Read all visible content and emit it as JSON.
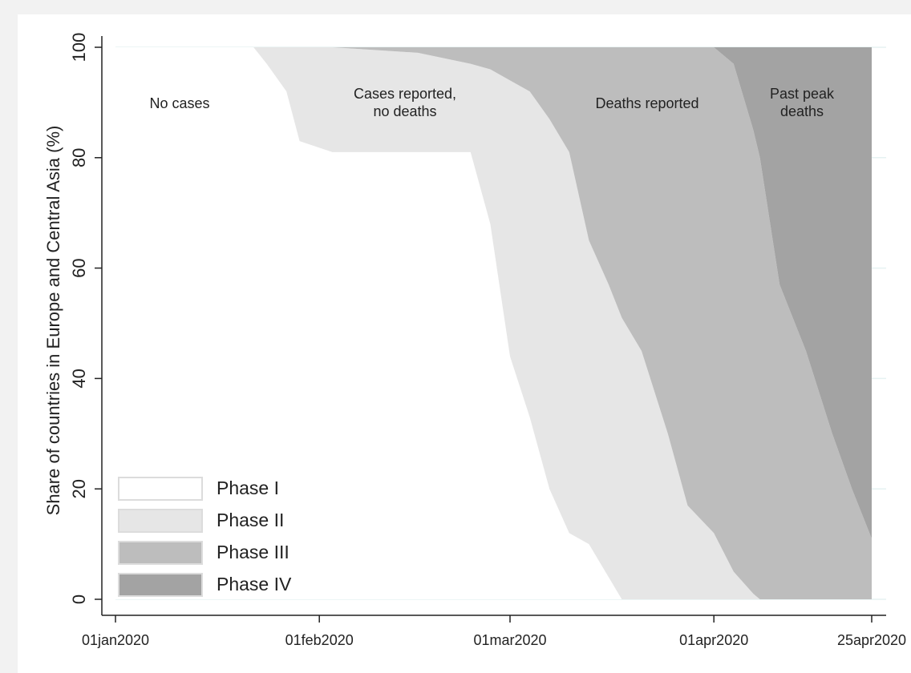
{
  "chart_data": {
    "type": "area",
    "stacked": true,
    "y_label": "Share of countries in Europe and Central Asia (%)",
    "x": [
      "2020-01-01",
      "2020-01-22",
      "2020-01-24",
      "2020-01-27",
      "2020-01-29",
      "2020-02-03",
      "2020-02-16",
      "2020-02-24",
      "2020-02-27",
      "2020-03-01",
      "2020-03-04",
      "2020-03-07",
      "2020-03-10",
      "2020-03-13",
      "2020-03-16",
      "2020-03-18",
      "2020-03-21",
      "2020-03-25",
      "2020-03-28",
      "2020-04-01",
      "2020-04-04",
      "2020-04-07",
      "2020-04-08",
      "2020-04-11",
      "2020-04-15",
      "2020-04-19",
      "2020-04-22",
      "2020-04-25"
    ],
    "series": [
      {
        "name": "Phase I",
        "color": "#ffffff",
        "values": [
          100,
          100,
          97,
          92,
          83,
          81,
          81,
          81,
          68,
          44,
          33,
          20,
          12,
          10,
          4,
          0,
          0,
          0,
          0,
          0,
          0,
          0,
          0,
          0,
          0,
          0,
          0,
          0
        ]
      },
      {
        "name": "Phase II",
        "color": "#e6e6e6",
        "values": [
          0,
          0,
          3,
          8,
          17,
          19,
          18,
          16,
          28,
          50,
          59,
          67,
          69,
          55,
          53,
          51,
          45,
          30,
          17,
          12,
          5,
          1,
          0,
          0,
          0,
          0,
          0,
          0
        ]
      },
      {
        "name": "Phase III",
        "color": "#bdbdbd",
        "values": [
          0,
          0,
          0,
          0,
          0,
          0,
          1,
          3,
          4,
          6,
          8,
          13,
          19,
          35,
          43,
          49,
          55,
          70,
          83,
          88,
          92,
          84,
          80,
          57,
          45,
          30,
          20,
          11
        ]
      },
      {
        "name": "Phase IV",
        "color": "#a3a3a3",
        "values": [
          0,
          0,
          0,
          0,
          0,
          0,
          0,
          0,
          0,
          0,
          0,
          0,
          0,
          0,
          0,
          0,
          0,
          0,
          0,
          0,
          3,
          15,
          20,
          43,
          55,
          70,
          80,
          89
        ]
      }
    ],
    "annotations": [
      [
        "No cases"
      ],
      [
        "Cases reported,",
        "no deaths"
      ],
      [
        "Deaths reported"
      ],
      [
        "Past peak",
        "deaths"
      ]
    ],
    "xlim": [
      "2020-01-01",
      "2020-04-25"
    ],
    "xticks": [
      {
        "value": "2020-01-01",
        "label": "01jan2020"
      },
      {
        "value": "2020-02-01",
        "label": "01feb2020"
      },
      {
        "value": "2020-03-01",
        "label": "01mar2020"
      },
      {
        "value": "2020-04-01",
        "label": "01apr2020"
      },
      {
        "value": "2020-04-25",
        "label": "25apr2020"
      }
    ],
    "ylim": [
      0,
      100
    ],
    "yticks": [
      0,
      20,
      40,
      60,
      80,
      100
    ],
    "grid": true,
    "legend": "bottom-left"
  }
}
